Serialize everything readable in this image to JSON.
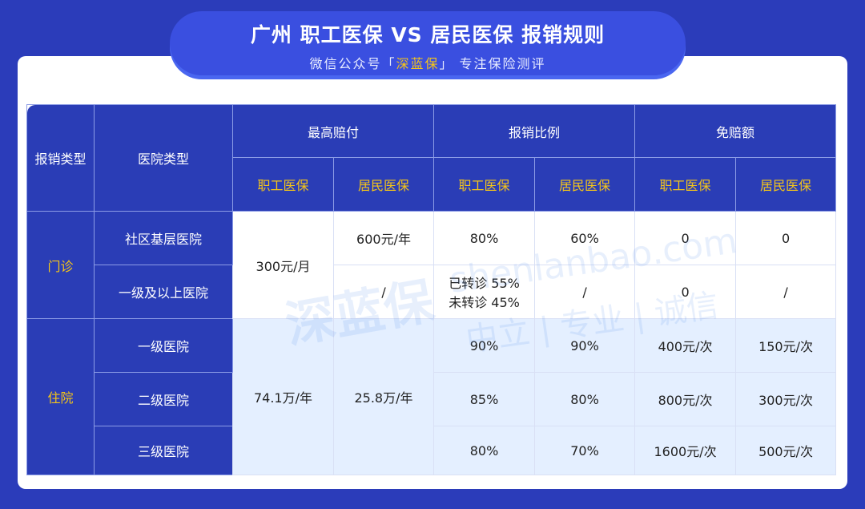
{
  "header": {
    "title": "广州 职工医保 VS 居民医保 报销规则",
    "subtitle_prefix": "微信公众号「",
    "subtitle_brand": "深蓝保",
    "subtitle_suffix": "」 专注保险测评"
  },
  "watermark": {
    "logo": "深蓝保",
    "site": "shenlanbao.com",
    "slogan": "中立 | 专业 | 诚信"
  },
  "colors": {
    "background": "#2b3cba",
    "header_cell": "#2a3db6",
    "accent_yellow": "#f5c518",
    "inpatient_row": "#e4efff"
  },
  "table": {
    "col_type": "报销类型",
    "col_hospital": "医院类型",
    "groups": [
      "最高赔付",
      "报销比例",
      "免赔额"
    ],
    "sub": [
      "职工医保",
      "居民医保"
    ],
    "outpatient": {
      "label": "门诊",
      "max_employee": "300元/月",
      "rows": [
        {
          "hospital": "社区基层医院",
          "max_resident": "600元/年",
          "ratio_employee": "80%",
          "ratio_resident": "60%",
          "ded_employee": "0",
          "ded_resident": "0"
        },
        {
          "hospital": "一级及以上医院",
          "max_resident": "/",
          "ratio_employee_1": "已转诊 55%",
          "ratio_employee_2": "未转诊 45%",
          "ratio_resident": "/",
          "ded_employee": "0",
          "ded_resident": "/"
        }
      ]
    },
    "inpatient": {
      "label": "住院",
      "max_employee": "74.1万/年",
      "max_resident": "25.8万/年",
      "rows": [
        {
          "hospital": "一级医院",
          "ratio_employee": "90%",
          "ratio_resident": "90%",
          "ded_employee": "400元/次",
          "ded_resident": "150元/次"
        },
        {
          "hospital": "二级医院",
          "ratio_employee": "85%",
          "ratio_resident": "80%",
          "ded_employee": "800元/次",
          "ded_resident": "300元/次"
        },
        {
          "hospital": "三级医院",
          "ratio_employee": "80%",
          "ratio_resident": "70%",
          "ded_employee": "1600元/次",
          "ded_resident": "500元/次"
        }
      ]
    }
  }
}
